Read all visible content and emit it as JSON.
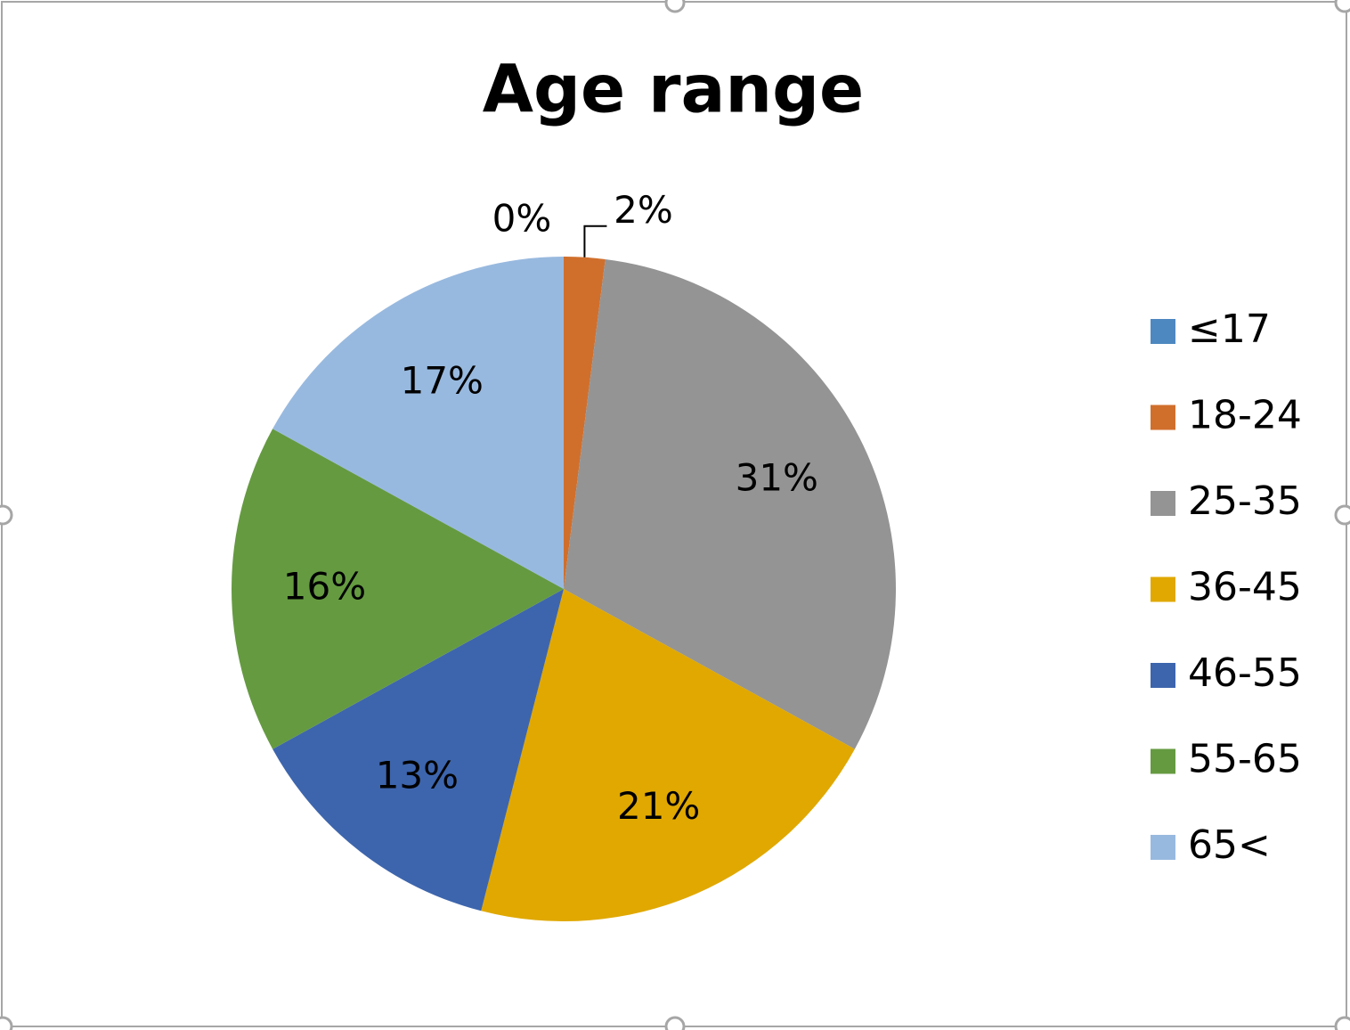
{
  "chart_data": {
    "type": "pie",
    "title": "Age range",
    "categories": [
      "≤17",
      "18-24",
      "25-35",
      "36-45",
      "46-55",
      "55-65",
      "65<"
    ],
    "values": [
      0,
      2,
      31,
      21,
      13,
      16,
      17
    ],
    "value_labels": [
      "0%",
      "2%",
      "31%",
      "21%",
      "13%",
      "16%",
      "17%"
    ],
    "colors": [
      "#4e88c0",
      "#d06f2c",
      "#949494",
      "#e0a800",
      "#3d65ad",
      "#659a41",
      "#98b9df"
    ],
    "legend": "right"
  }
}
